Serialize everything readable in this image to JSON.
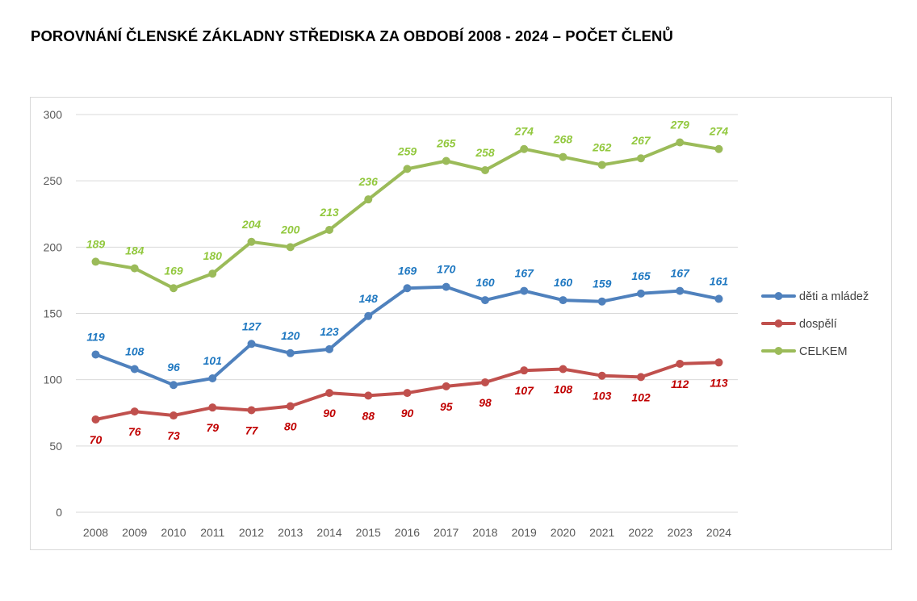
{
  "page": {
    "title": "POROVNÁNÍ ČLENSKÉ ZÁKLADNY STŘEDISKA ZA OBDOBÍ 2008 - 2024 – POČET ČLENŮ"
  },
  "chart_data": {
    "type": "line",
    "title": "",
    "xlabel": "",
    "ylabel": "",
    "categories": [
      "2008",
      "2009",
      "2010",
      "2011",
      "2012",
      "2013",
      "2014",
      "2015",
      "2016",
      "2017",
      "2018",
      "2019",
      "2020",
      "2021",
      "2022",
      "2023",
      "2024"
    ],
    "ylim": [
      0,
      300
    ],
    "yticks": [
      0,
      50,
      100,
      150,
      200,
      250,
      300
    ],
    "grid": true,
    "legend_position": "right",
    "data_labels": true,
    "series": [
      {
        "name": "děti a mládež",
        "color": "#4f81bd",
        "label_color": "#1f78c1",
        "label_position": "above",
        "values": [
          119,
          108,
          96,
          101,
          127,
          120,
          123,
          148,
          169,
          170,
          160,
          167,
          160,
          159,
          165,
          167,
          161
        ]
      },
      {
        "name": "dospělí",
        "color": "#c0504d",
        "label_color": "#c00000",
        "label_position": "below",
        "values": [
          70,
          76,
          73,
          79,
          77,
          80,
          90,
          88,
          90,
          95,
          98,
          107,
          108,
          103,
          102,
          112,
          113
        ]
      },
      {
        "name": "CELKEM",
        "color": "#9bbb59",
        "label_color": "#92c83e",
        "label_position": "above",
        "values": [
          189,
          184,
          169,
          180,
          204,
          200,
          213,
          236,
          259,
          265,
          258,
          274,
          268,
          262,
          267,
          279,
          274
        ]
      }
    ]
  }
}
